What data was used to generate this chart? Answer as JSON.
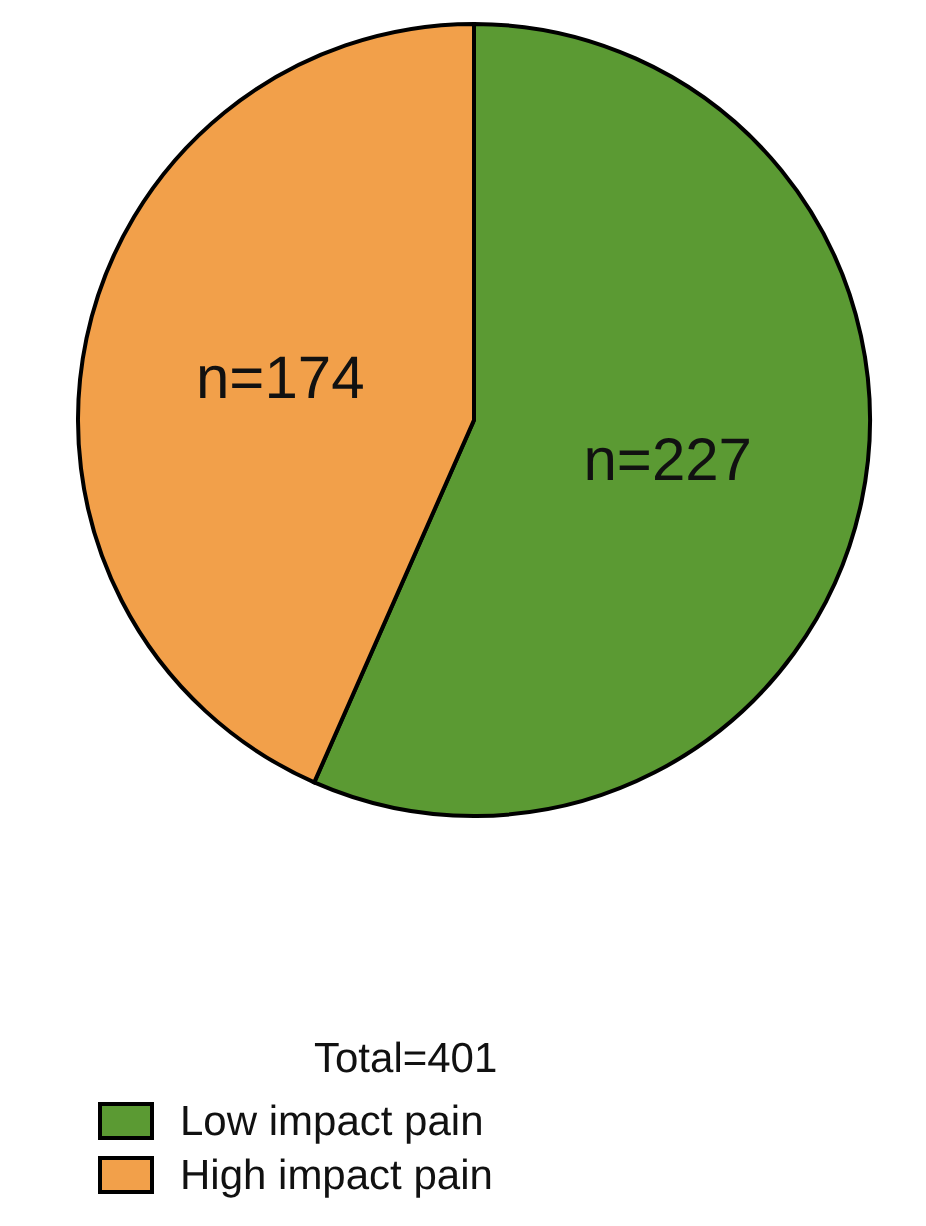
{
  "chart_data": {
    "type": "pie",
    "categories": [
      "Low impact pain",
      "High impact pain"
    ],
    "values": [
      227,
      174
    ],
    "colors": [
      "#5b9a33",
      "#f2a04a"
    ],
    "value_labels": [
      "n=227",
      "n=174"
    ],
    "annotations": [
      "Total=401"
    ],
    "legend": "bottom"
  }
}
